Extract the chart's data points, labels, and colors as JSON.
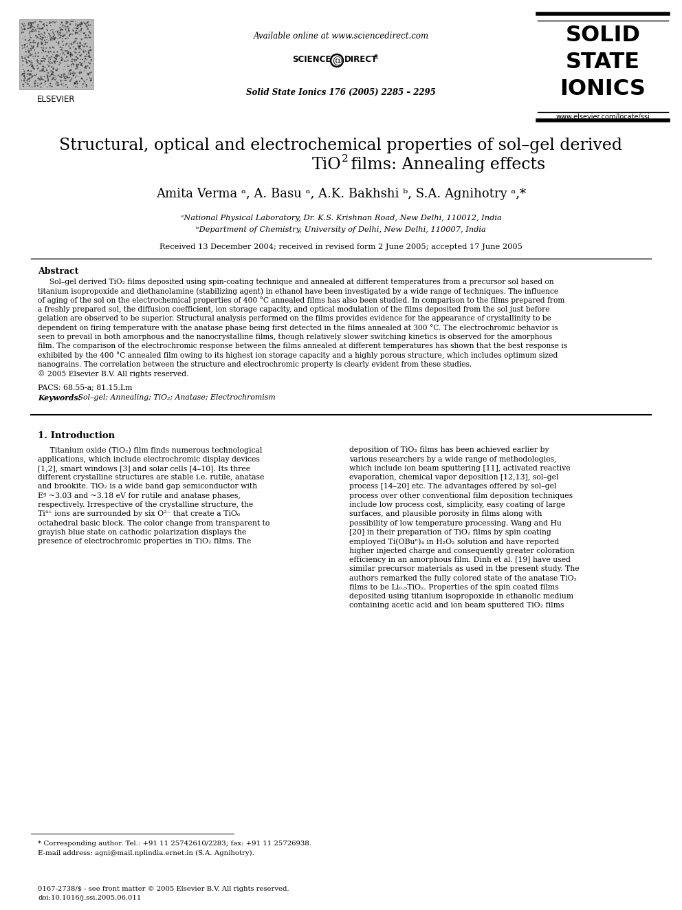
{
  "bg_color": "#ffffff",
  "header_available_online": "Available online at www.sciencedirect.com",
  "header_journal_ref": "Solid State Ionics 176 (2005) 2285 – 2295",
  "journal_name_line1": "SOLID",
  "journal_name_line2": "STATE",
  "journal_name_line3": "IONICS",
  "journal_website": "www.elsevier.com/locate/ssi",
  "title_line1": "Structural, optical and electrochemical properties of sol–gel derived",
  "title_line2a": "TiO",
  "title_line2b": "2",
  "title_line2c": " films: Annealing effects",
  "authors": "Amita Verma ᵃ, A. Basu ᵃ, A.K. Bakhshi ᵇ, S.A. Agnihotry ᵃ,*",
  "affil_a": "ᵃNational Physical Laboratory, Dr. K.S. Krishnan Road, New Delhi, 110012, India",
  "affil_b": "ᵇDepartment of Chemistry, University of Delhi, New Delhi, 110007, India",
  "received": "Received 13 December 2004; received in revised form 2 June 2005; accepted 17 June 2005",
  "abstract_title": "Abstract",
  "abstract_lines": [
    "     Sol–gel derived TiO₂ films deposited using spin-coating technique and annealed at different temperatures from a precursor sol based on",
    "titanium isopropoxide and diethanolamine (stabilizing agent) in ethanol have been investigated by a wide range of techniques. The influence",
    "of aging of the sol on the electrochemical properties of 400 °C annealed films has also been studied. In comparison to the films prepared from",
    "a freshly prepared sol, the diffusion coefficient, ion storage capacity, and optical modulation of the films deposited from the sol just before",
    "gelation are observed to be superior. Structural analysis performed on the films provides evidence for the appearance of crystallinity to be",
    "dependent on firing temperature with the anatase phase being first detected in the films annealed at 300 °C. The electrochromic behavior is",
    "seen to prevail in both amorphous and the nanocrystalline films, though relatively slower switching kinetics is observed for the amorphous",
    "film. The comparison of the electrochromic response between the films annealed at different temperatures has shown that the best response is",
    "exhibited by the 400 °C annealed film owing to its highest ion storage capacity and a highly porous structure, which includes optimum sized",
    "nanograins. The correlation between the structure and electrochromic property is clearly evident from these studies.",
    "© 2005 Elsevier B.V. All rights reserved."
  ],
  "pacs": "PACS: 68.55-a; 81.15.Lm",
  "keywords_label": "Keywords:",
  "keywords_text": " Sol–gel; Annealing; TiO₂; Anatase; Electrochromism",
  "section1_title": "1. Introduction",
  "intro_col1_lines": [
    "     Titanium oxide (TiO₂) film finds numerous technological",
    "applications, which include electrochromic display devices",
    "[1,2], smart windows [3] and solar cells [4–10]. Its three",
    "different crystalline structures are stable i.e. rutile, anatase",
    "and brookite. TiO₂ is a wide band gap semiconductor with",
    "Eᵍ ~3.03 and ~3.18 eV for rutile and anatase phases,",
    "respectively. Irrespective of the crystalline structure, the",
    "Ti⁴⁺ ions are surrounded by six O²⁻ that create a TiO₆",
    "octahedral basic block. The color change from transparent to",
    "grayish blue state on cathodic polarization displays the",
    "presence of electrochromic properties in TiO₂ films. The"
  ],
  "intro_col2_lines": [
    "deposition of TiO₂ films has been achieved earlier by",
    "various researchers by a wide range of methodologies,",
    "which include ion beam sputtering [11], activated reactive",
    "evaporation, chemical vapor deposition [12,13], sol–gel",
    "process [14–20] etc. The advantages offered by sol–gel",
    "process over other conventional film deposition techniques",
    "include low process cost, simplicity, easy coating of large",
    "surfaces, and plausible porosity in films along with",
    "possibility of low temperature processing. Wang and Hu",
    "[20] in their preparation of TiO₂ films by spin coating",
    "employed Ti(OBuⁿ)₄ in H₂O₂ solution and have reported",
    "higher injected charge and consequently greater coloration",
    "efficiency in an amorphous film. Dinh et al. [19] have used",
    "similar precursor materials as used in the present study. The",
    "authors remarked the fully colored state of the anatase TiO₂",
    "films to be Li₀.₅TiO₂. Properties of the spin coated films",
    "deposited using titanium isopropoxide in ethanolic medium",
    "containing acetic acid and ion beam sputtered TiO₂ films"
  ],
  "footnote_star": "* Corresponding author. Tel.: +91 11 25742610/2283; fax: +91 11 25726938.",
  "footnote_email": "E-mail address: agni@mail.nplindia.ernet.in (S.A. Agnihotry).",
  "footer_issn": "0167-2738/$ - see front matter © 2005 Elsevier B.V. All rights reserved.",
  "footer_doi": "doi:10.1016/j.ssi.2005.06.011"
}
